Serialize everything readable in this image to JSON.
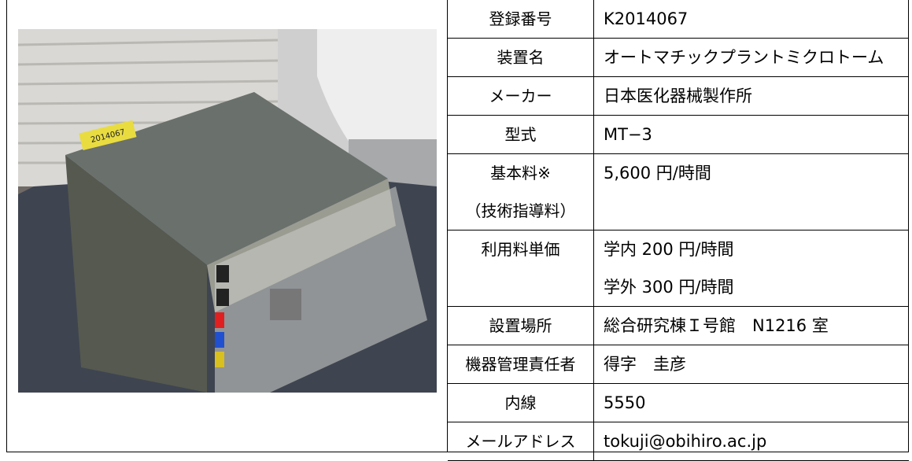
{
  "table": {
    "rows": [
      {
        "label": [
          "登録番号"
        ],
        "value": [
          "K2014067"
        ]
      },
      {
        "label": [
          "装置名"
        ],
        "value": [
          "オートマチックプラントミクロトーム"
        ]
      },
      {
        "label": [
          "メーカー"
        ],
        "value": [
          "日本医化器械製作所"
        ]
      },
      {
        "label": [
          "型式"
        ],
        "value": [
          "MT−3"
        ]
      },
      {
        "label": [
          "基本料※",
          "（技術指導料）"
        ],
        "value": [
          "5,600 円/時間"
        ]
      },
      {
        "label": [
          "利用料単価"
        ],
        "value": [
          "学内 200 円/時間",
          "学外 300 円/時間"
        ]
      },
      {
        "label": [
          "設置場所"
        ],
        "value": [
          "総合研究棟Ｉ号館　N1216 室"
        ]
      },
      {
        "label": [
          "機器管理責任者"
        ],
        "value": [
          "得字　圭彦"
        ]
      },
      {
        "label": [
          "内線"
        ],
        "value": [
          "5550"
        ]
      },
      {
        "label": [
          "メールアドレス"
        ],
        "value": [
          "tokuji@obihiro.ac.jp"
        ]
      }
    ]
  },
  "photo": {
    "sticker": "2014067"
  }
}
